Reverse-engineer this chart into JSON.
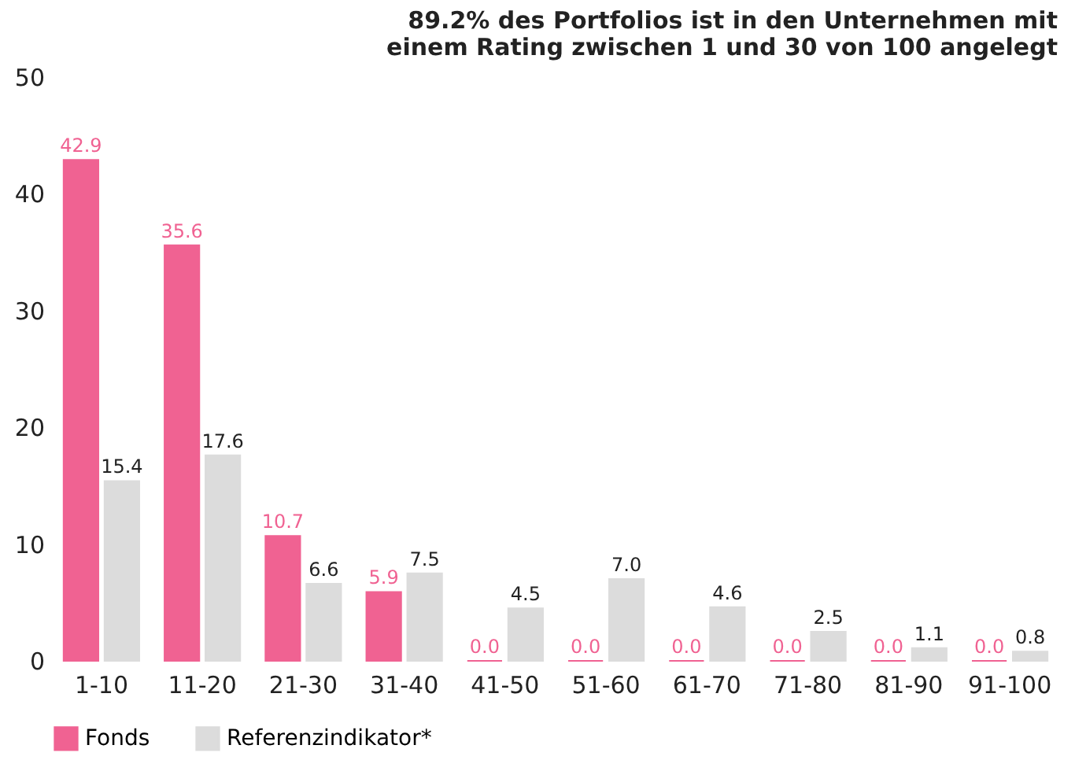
{
  "chart_data": {
    "type": "bar",
    "title": "89.2% des Portfolios ist in den Unternehmen mit\neinem Rating zwischen 1 und 30 von 100 angelegt",
    "categories": [
      "1-10",
      "11-20",
      "21-30",
      "31-40",
      "41-50",
      "51-60",
      "61-70",
      "71-80",
      "81-90",
      "91-100"
    ],
    "series": [
      {
        "name": "Fonds",
        "color": "#f06292",
        "values": [
          42.9,
          35.6,
          10.7,
          5.9,
          0,
          0,
          0,
          0,
          0,
          0
        ],
        "value_labels": [
          "42.9",
          "35.6",
          "10.7",
          "5.9",
          "0.0",
          "0.0",
          "0.0",
          "0.0",
          "0.0",
          "0.0"
        ]
      },
      {
        "name": "Referenzindikator*",
        "color": "#dcdcdc",
        "values": [
          15.4,
          17.6,
          6.6,
          7.5,
          4.5,
          7.0,
          4.6,
          2.5,
          1.1,
          0.8
        ],
        "value_labels": [
          "15.4",
          "17.6",
          "6.6",
          "7.5",
          "4.5",
          "7.0",
          "4.6",
          "2.5",
          "1.1",
          "0.8"
        ]
      }
    ],
    "ylim": [
      0,
      50
    ],
    "yticks": [
      0,
      10,
      20,
      30,
      40,
      50
    ],
    "grid": false,
    "legend": "bottom"
  }
}
